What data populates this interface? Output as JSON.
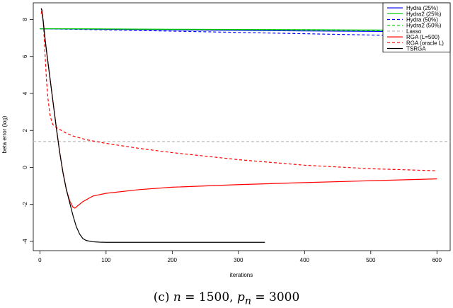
{
  "caption": {
    "prefix": "(c) ",
    "n_var": "n",
    "n_eq": " = 1500, ",
    "p_var": "p",
    "p_sub": "n",
    "p_eq": " = 3000"
  },
  "chart_data": {
    "type": "line",
    "xlabel": "iterations",
    "ylabel": "beta error (log)",
    "xlim": [
      -10,
      620
    ],
    "ylim": [
      -4.5,
      8.9
    ],
    "x_ticks": [
      0,
      100,
      200,
      300,
      400,
      500,
      600
    ],
    "y_ticks": [
      -4,
      -2,
      0,
      2,
      4,
      6,
      8
    ],
    "grid": false,
    "legend_position": "top-right",
    "series": [
      {
        "name": "Hydra (25%)",
        "color": "#0000ff",
        "dash": "solid",
        "x": [
          0,
          100,
          200,
          300,
          400,
          500,
          600
        ],
        "y": [
          7.5,
          7.47,
          7.44,
          7.41,
          7.38,
          7.36,
          7.33
        ]
      },
      {
        "name": "Hydra2 (25%)",
        "color": "#00cc00",
        "dash": "solid",
        "x": [
          0,
          100,
          200,
          300,
          400,
          500,
          600
        ],
        "y": [
          7.5,
          7.49,
          7.47,
          7.46,
          7.45,
          7.43,
          7.42
        ]
      },
      {
        "name": "Hydra (50%)",
        "color": "#0000ff",
        "dash": "dashed",
        "x": [
          0,
          100,
          200,
          300,
          400,
          500,
          600
        ],
        "y": [
          7.5,
          7.44,
          7.37,
          7.3,
          7.23,
          7.16,
          7.1
        ]
      },
      {
        "name": "Hydra2 (50%)",
        "color": "#00cc00",
        "dash": "dashed",
        "x": [
          0,
          100,
          200,
          300,
          400,
          500,
          600
        ],
        "y": [
          7.5,
          7.48,
          7.46,
          7.44,
          7.42,
          7.4,
          7.38
        ]
      },
      {
        "name": "Lasso",
        "color": "#bbbbbb",
        "dash": "dashed",
        "x": [
          -10,
          620
        ],
        "y": [
          1.4,
          1.4
        ]
      },
      {
        "name": "RGA (L=500)",
        "color": "#ff0000",
        "dash": "solid",
        "x": [
          2,
          3,
          5,
          8,
          10,
          15,
          20,
          25,
          30,
          35,
          40,
          45,
          50,
          53,
          58,
          65,
          80,
          100,
          150,
          200,
          300,
          400,
          500,
          600
        ],
        "y": [
          8.6,
          8.5,
          7.9,
          6.9,
          6.3,
          4.9,
          3.5,
          2.1,
          0.8,
          -0.3,
          -1.2,
          -1.8,
          -2.15,
          -2.2,
          -2.05,
          -1.85,
          -1.55,
          -1.4,
          -1.2,
          -1.07,
          -0.93,
          -0.82,
          -0.72,
          -0.62
        ]
      },
      {
        "name": "RGA (oracle L)",
        "color": "#ff0000",
        "dash": "dashed",
        "x": [
          2,
          3,
          5,
          8,
          10,
          12,
          15,
          18,
          20,
          25,
          30,
          40,
          50,
          70,
          100,
          150,
          200,
          300,
          400,
          500,
          600
        ],
        "y": [
          8.3,
          8.55,
          8.0,
          6.0,
          4.7,
          3.8,
          2.9,
          2.45,
          2.3,
          2.15,
          2.05,
          1.85,
          1.7,
          1.5,
          1.3,
          1.03,
          0.8,
          0.42,
          0.12,
          -0.07,
          -0.18
        ]
      },
      {
        "name": "TSRGA",
        "color": "#000000",
        "dash": "solid",
        "x": [
          2,
          3,
          5,
          8,
          10,
          15,
          20,
          25,
          30,
          35,
          40,
          45,
          50,
          55,
          60,
          65,
          70,
          80,
          90,
          100,
          150,
          200,
          250,
          300,
          340
        ],
        "y": [
          8.6,
          8.5,
          7.9,
          6.9,
          6.3,
          4.9,
          3.5,
          2.1,
          0.8,
          -0.3,
          -1.2,
          -1.9,
          -2.6,
          -3.2,
          -3.6,
          -3.85,
          -3.95,
          -4.02,
          -4.04,
          -4.05,
          -4.05,
          -4.05,
          -4.05,
          -4.05,
          -4.05
        ]
      }
    ]
  }
}
